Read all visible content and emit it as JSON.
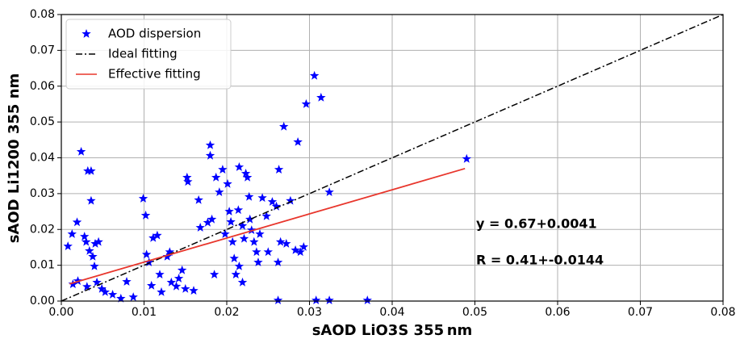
{
  "chart_data": {
    "type": "scatter",
    "xlabel": "sAOD LiO3S 355 nm",
    "ylabel": "sAOD Li1200 355 nm",
    "xlim": [
      0,
      0.08
    ],
    "ylim": [
      0,
      0.08
    ],
    "xticks": [
      {
        "value": 0,
        "label": "0.00"
      },
      {
        "value": 0.01,
        "label": "0.01"
      },
      {
        "value": 0.02,
        "label": "0.02"
      },
      {
        "value": 0.03,
        "label": "0.03"
      },
      {
        "value": 0.04,
        "label": "0.04"
      },
      {
        "value": 0.05,
        "label": "0.05"
      },
      {
        "value": 0.06,
        "label": "0.06"
      },
      {
        "value": 0.07,
        "label": "0.07"
      },
      {
        "value": 0.08,
        "label": "0.08"
      }
    ],
    "yticks": [
      {
        "value": 0,
        "label": "0.00"
      },
      {
        "value": 0.01,
        "label": "0.01"
      },
      {
        "value": 0.02,
        "label": "0.02"
      },
      {
        "value": 0.03,
        "label": "0.03"
      },
      {
        "value": 0.04,
        "label": "0.04"
      },
      {
        "value": 0.05,
        "label": "0.05"
      },
      {
        "value": 0.06,
        "label": "0.06"
      },
      {
        "value": 0.07,
        "label": "0.07"
      },
      {
        "value": 0.08,
        "label": "0.08"
      }
    ],
    "grid": true,
    "legend": "upper left",
    "annotations": [
      "y = 0.67+0.0041",
      "R = 0.41+-0.0144"
    ],
    "annotation_color": "#e8362c",
    "series": [
      {
        "name": "AOD dispersion",
        "color": "#0000ff",
        "marker": "star",
        "x": [
          0.0008,
          0.0013,
          0.0019,
          0.0024,
          0.0028,
          0.003,
          0.0032,
          0.0036,
          0.0036,
          0.0034,
          0.0038,
          0.0041,
          0.0045,
          0.004,
          0.0043,
          0.0014,
          0.002,
          0.0031,
          0.0049,
          0.0053,
          0.0062,
          0.0072,
          0.0079,
          0.0087,
          0.0099,
          0.0102,
          0.0103,
          0.0106,
          0.0111,
          0.0116,
          0.0119,
          0.0109,
          0.0121,
          0.0128,
          0.0131,
          0.0133,
          0.0139,
          0.0142,
          0.0146,
          0.015,
          0.0152,
          0.0153,
          0.016,
          0.0166,
          0.0168,
          0.0177,
          0.018,
          0.018,
          0.0182,
          0.0185,
          0.0187,
          0.0191,
          0.0195,
          0.0198,
          0.0201,
          0.0203,
          0.0205,
          0.0207,
          0.0209,
          0.0211,
          0.0214,
          0.0215,
          0.0219,
          0.0221,
          0.0223,
          0.0225,
          0.0227,
          0.0228,
          0.023,
          0.0233,
          0.0236,
          0.0238,
          0.024,
          0.0215,
          0.0219,
          0.0243,
          0.0248,
          0.025,
          0.0255,
          0.026,
          0.0263,
          0.0265,
          0.0262,
          0.0269,
          0.0272,
          0.0277,
          0.0283,
          0.0286,
          0.0289,
          0.0293,
          0.0296,
          0.0306,
          0.0314,
          0.0324,
          0.0308,
          0.0324,
          0.037,
          0.049,
          0.0262
        ],
        "y": [
          0.0153,
          0.0187,
          0.022,
          0.0417,
          0.018,
          0.0165,
          0.0363,
          0.0363,
          0.028,
          0.014,
          0.0124,
          0.016,
          0.0165,
          0.0097,
          0.0052,
          0.0047,
          0.0056,
          0.004,
          0.0034,
          0.0025,
          0.0018,
          0.0007,
          0.0054,
          0.0011,
          0.0286,
          0.0239,
          0.013,
          0.0108,
          0.0176,
          0.0183,
          0.0074,
          0.0043,
          0.0025,
          0.0124,
          0.0137,
          0.0052,
          0.0041,
          0.0063,
          0.0086,
          0.0034,
          0.0345,
          0.0333,
          0.0029,
          0.0282,
          0.0205,
          0.0219,
          0.0435,
          0.0406,
          0.0228,
          0.0074,
          0.0345,
          0.0304,
          0.0367,
          0.0187,
          0.0327,
          0.025,
          0.0221,
          0.0165,
          0.0119,
          0.0074,
          0.0254,
          0.0374,
          0.021,
          0.0174,
          0.0356,
          0.0345,
          0.0291,
          0.0228,
          0.0198,
          0.0165,
          0.0137,
          0.0108,
          0.0187,
          0.0097,
          0.0052,
          0.0288,
          0.0237,
          0.0137,
          0.0277,
          0.0264,
          0.0367,
          0.0165,
          0.0108,
          0.0487,
          0.016,
          0.028,
          0.0142,
          0.0444,
          0.0137,
          0.0151,
          0.055,
          0.0629,
          0.0568,
          0.0304,
          0.0002,
          0.0002,
          0.0002,
          0.0397,
          0.0002
        ]
      },
      {
        "name": "Ideal fitting",
        "color": "#000000",
        "line": "dashdot",
        "x": [
          0,
          0.08
        ],
        "y": [
          0,
          0.08
        ]
      },
      {
        "name": "Effective fitting",
        "color": "#e8362c",
        "line": "solid",
        "x": [
          0.001,
          0.0488
        ],
        "y": [
          0.0048,
          0.037
        ]
      }
    ]
  }
}
